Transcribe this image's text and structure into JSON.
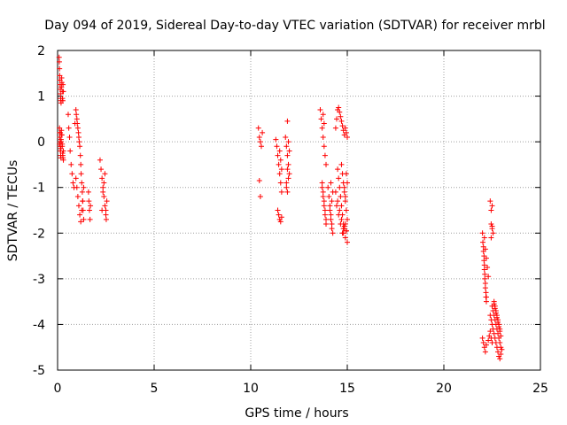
{
  "chart_data": {
    "type": "scatter",
    "title": "Day 094 of 2019, Sidereal Day-to-day VTEC variation (SDTVAR) for receiver mrbl",
    "xlabel": "GPS time / hours",
    "ylabel": "SDTVAR / TECUs",
    "xlim": [
      0,
      25
    ],
    "ylim": [
      -5,
      2
    ],
    "xticks": [
      0,
      5,
      10,
      15,
      20,
      25
    ],
    "xtick_labels": [
      "0",
      "5",
      "10",
      "15",
      "20",
      "25"
    ],
    "yticks": [
      2,
      1,
      0,
      -1,
      -2,
      -3,
      -4,
      -5
    ],
    "ytick_labels": [
      "2",
      "1",
      "0",
      "-1",
      "-2",
      "-3",
      "-4",
      "-5"
    ],
    "grid": true,
    "marker": "+",
    "color": "#ff0000",
    "series": [
      {
        "name": "SDTVAR",
        "x": [
          0.08,
          0.09,
          0.1,
          0.11,
          0.12,
          0.13,
          0.14,
          0.15,
          0.16,
          0.17,
          0.18,
          0.2,
          0.21,
          0.22,
          0.24,
          0.25,
          0.27,
          0.28,
          0.3,
          0.1,
          0.11,
          0.12,
          0.13,
          0.14,
          0.15,
          0.16,
          0.17,
          0.18,
          0.2,
          0.22,
          0.24,
          0.26,
          0.28,
          0.3,
          0.1,
          0.12,
          0.14,
          0.15,
          0.17,
          0.19,
          0.21,
          0.24,
          0.27,
          0.3,
          0.55,
          0.58,
          0.62,
          0.65,
          0.7,
          0.75,
          0.8,
          0.85,
          0.9,
          0.95,
          0.97,
          1.0,
          1.02,
          1.05,
          1.08,
          1.1,
          1.12,
          1.15,
          1.18,
          1.2,
          1.22,
          1.25,
          1.28,
          1.3,
          1.32,
          1.35,
          0.95,
          1.0,
          1.05,
          1.1,
          1.15,
          1.2,
          1.25,
          1.3,
          1.35,
          1.6,
          1.62,
          1.65,
          1.68,
          1.7,
          2.2,
          2.25,
          2.3,
          2.35,
          2.4,
          2.45,
          2.5,
          2.52,
          2.55,
          2.3,
          2.35,
          2.4,
          2.45,
          2.5,
          10.4,
          10.45,
          10.5,
          10.55,
          10.6,
          10.45,
          10.5,
          11.3,
          11.35,
          11.4,
          11.45,
          11.5,
          11.55,
          11.6,
          11.5,
          11.55,
          11.6,
          11.4,
          11.45,
          11.5,
          11.55,
          11.6,
          11.8,
          11.85,
          11.9,
          11.95,
          12.0,
          11.85,
          11.9,
          11.95,
          12.0,
          11.9,
          11.95,
          11.85,
          11.9,
          13.6,
          13.65,
          13.7,
          13.75,
          13.8,
          13.85,
          13.9,
          13.7,
          13.75,
          13.8,
          13.85,
          13.9,
          13.7,
          13.75,
          13.8,
          13.85,
          13.9,
          13.75,
          13.8,
          14.0,
          14.05,
          14.1,
          14.15,
          14.2,
          14.25,
          14.1,
          14.15,
          14.2,
          14.25,
          14.15,
          14.2,
          14.4,
          14.45,
          14.5,
          14.55,
          14.6,
          14.65,
          14.7,
          14.75,
          14.8,
          14.85,
          14.9,
          14.95,
          15.0,
          14.5,
          14.55,
          14.6,
          14.65,
          14.7,
          14.75,
          14.8,
          14.85,
          14.9,
          14.95,
          15.0,
          14.4,
          14.5,
          14.6,
          14.7,
          14.8,
          14.9,
          15.0,
          14.45,
          14.55,
          14.65,
          14.75,
          14.85,
          14.95,
          14.7,
          14.75,
          14.8,
          14.85,
          14.9,
          14.95,
          15.0,
          14.8,
          14.85,
          14.9,
          14.95,
          22.0,
          22.02,
          22.05,
          22.08,
          22.1,
          22.12,
          22.15,
          22.18,
          22.2,
          22.05,
          22.08,
          22.1,
          22.12,
          22.15,
          22.18,
          22.2,
          22.1,
          22.15,
          22.2,
          22.25,
          22.3,
          22.0,
          22.05,
          22.1,
          22.15,
          22.2,
          22.3,
          22.35,
          22.4,
          22.45,
          22.5,
          22.4,
          22.45,
          22.5,
          22.45,
          22.5,
          22.55,
          22.45,
          22.5,
          22.4,
          22.45,
          22.5,
          22.55,
          22.6,
          22.65,
          22.7,
          22.75,
          22.8,
          22.85,
          22.9,
          22.95,
          23.0,
          22.5,
          22.55,
          22.6,
          22.65,
          22.7,
          22.75,
          22.8,
          22.85,
          22.9,
          22.95,
          22.6,
          22.65,
          22.7,
          22.75,
          22.8,
          22.85,
          22.9,
          22.6,
          22.65,
          22.7,
          22.75,
          22.8,
          22.85,
          22.9,
          22.95
        ],
        "y": [
          1.85,
          1.75,
          1.6,
          1.45,
          1.35,
          1.25,
          1.15,
          1.05,
          0.95,
          0.9,
          0.85,
          1.2,
          1.4,
          1.3,
          1.1,
          0.95,
          0.9,
          1.25,
          1.1,
          0.3,
          0.2,
          0.1,
          0.0,
          -0.1,
          -0.2,
          -0.3,
          -0.15,
          0.05,
          0.25,
          0.15,
          -0.05,
          -0.25,
          -0.35,
          -0.4,
          -0.05,
          0.1,
          0.2,
          -0.2,
          -0.35,
          0.0,
          0.15,
          -0.1,
          -0.3,
          -0.2,
          0.6,
          0.3,
          0.1,
          -0.2,
          -0.5,
          -0.7,
          -0.9,
          -1.0,
          0.4,
          0.7,
          0.6,
          0.5,
          0.4,
          0.3,
          0.2,
          0.1,
          0.0,
          -0.1,
          -0.3,
          -0.5,
          -0.7,
          -0.9,
          -1.1,
          -1.3,
          -1.5,
          -1.7,
          -0.8,
          -1.0,
          -1.2,
          -1.4,
          -1.6,
          -1.75,
          -1.5,
          -1.3,
          -1.0,
          -1.1,
          -1.3,
          -1.5,
          -1.7,
          -1.4,
          -0.4,
          -0.6,
          -0.8,
          -1.0,
          -1.2,
          -1.4,
          -1.6,
          -1.7,
          -1.3,
          -1.5,
          -1.1,
          -0.9,
          -0.7,
          -1.5,
          0.3,
          0.1,
          0.0,
          -0.1,
          0.2,
          -0.85,
          -1.2,
          0.05,
          -0.1,
          -0.3,
          -0.5,
          -0.7,
          -0.9,
          -1.1,
          -0.2,
          -0.4,
          -0.6,
          -1.5,
          -1.6,
          -1.7,
          -1.75,
          -1.65,
          0.1,
          -0.1,
          -0.3,
          -0.5,
          -0.7,
          -0.9,
          -1.1,
          0.0,
          -0.2,
          0.45,
          -0.8,
          -1.0,
          -0.6,
          0.7,
          0.5,
          0.3,
          0.1,
          -0.1,
          -0.3,
          -0.5,
          -0.9,
          -1.1,
          -1.3,
          -1.5,
          -1.7,
          -1.0,
          -1.2,
          -1.4,
          -1.6,
          -1.8,
          0.6,
          0.4,
          -1.0,
          -1.2,
          -1.4,
          -1.6,
          -1.8,
          -2.0,
          -1.5,
          -1.7,
          -1.3,
          -1.1,
          -0.9,
          -1.9,
          0.3,
          0.5,
          0.7,
          0.75,
          0.65,
          0.55,
          0.45,
          0.35,
          0.25,
          0.15,
          0.3,
          0.2,
          0.1,
          -0.6,
          -0.8,
          -1.0,
          -1.2,
          -1.4,
          -1.6,
          -1.8,
          -1.0,
          -1.2,
          -0.7,
          -0.9,
          -1.1,
          -1.3,
          -1.5,
          -1.7,
          -1.9,
          -2.1,
          -2.2,
          -1.4,
          -1.6,
          -1.8,
          -2.0,
          -1.85,
          -1.95,
          -0.5,
          -0.7,
          -0.9,
          -1.1,
          -1.3,
          -1.5,
          -1.7,
          -2.0,
          -1.9,
          -1.8,
          -1.95,
          -2.0,
          -2.2,
          -2.4,
          -2.6,
          -2.8,
          -3.0,
          -3.2,
          -3.4,
          -3.5,
          -2.3,
          -2.5,
          -2.7,
          -2.9,
          -3.1,
          -3.3,
          -3.4,
          -2.1,
          -2.35,
          -2.55,
          -2.75,
          -2.95,
          -4.3,
          -4.4,
          -4.5,
          -4.6,
          -4.45,
          -4.35,
          -4.25,
          -4.15,
          -4.3,
          -4.4,
          -1.3,
          -1.5,
          -1.4,
          -1.8,
          -1.9,
          -2.0,
          -2.1,
          -1.85,
          -3.8,
          -3.9,
          -4.0,
          -4.1,
          -4.2,
          -4.3,
          -4.4,
          -4.5,
          -4.6,
          -4.7,
          -4.75,
          -4.65,
          -4.55,
          -3.6,
          -3.7,
          -3.8,
          -3.9,
          -4.0,
          -4.1,
          -4.2,
          -4.3,
          -4.4,
          -4.5,
          -3.5,
          -3.6,
          -3.7,
          -3.8,
          -3.9,
          -4.0,
          -4.1,
          -3.55,
          -3.65,
          -3.75,
          -3.85,
          -3.95,
          -4.05,
          -4.15,
          -4.25
        ]
      }
    ]
  }
}
